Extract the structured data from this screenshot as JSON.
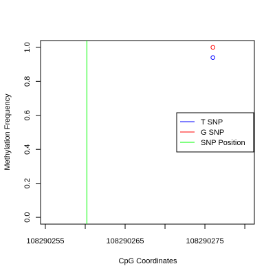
{
  "chart_data": {
    "type": "scatter",
    "xlabel": "CpG Coordinates",
    "ylabel": "Methylation Frequency",
    "xlim": [
      108290254.4,
      108290281.2
    ],
    "ylim": [
      -0.04,
      1.04
    ],
    "x_ticks": [
      108290255,
      108290260,
      108290265,
      108290270,
      108290275,
      108290280
    ],
    "x_tick_labels": [
      "108290255",
      "",
      "108290265",
      "",
      "108290275",
      ""
    ],
    "y_ticks": [
      0.0,
      0.2,
      0.4,
      0.6,
      0.8,
      1.0
    ],
    "y_tick_labels": [
      "0.0",
      "0.2",
      "0.4",
      "0.6",
      "0.8",
      "1.0"
    ],
    "series": [
      {
        "name": "T SNP",
        "color": "#0000ff",
        "marker": "open-circle",
        "points": [
          [
            108290276,
            0.94
          ]
        ]
      },
      {
        "name": "G SNP",
        "color": "#ff0000",
        "marker": "open-circle",
        "points": [
          [
            108290276,
            1.0
          ]
        ]
      }
    ],
    "vlines": [
      {
        "name": "SNP Position",
        "color": "#00ff00",
        "x": 108290260.2
      }
    ],
    "legend": {
      "position": "right",
      "entries": [
        {
          "label": "T SNP",
          "color": "#0000ff"
        },
        {
          "label": "G SNP",
          "color": "#ff0000"
        },
        {
          "label": "SNP Position",
          "color": "#00ff00"
        }
      ]
    },
    "grid": false
  }
}
